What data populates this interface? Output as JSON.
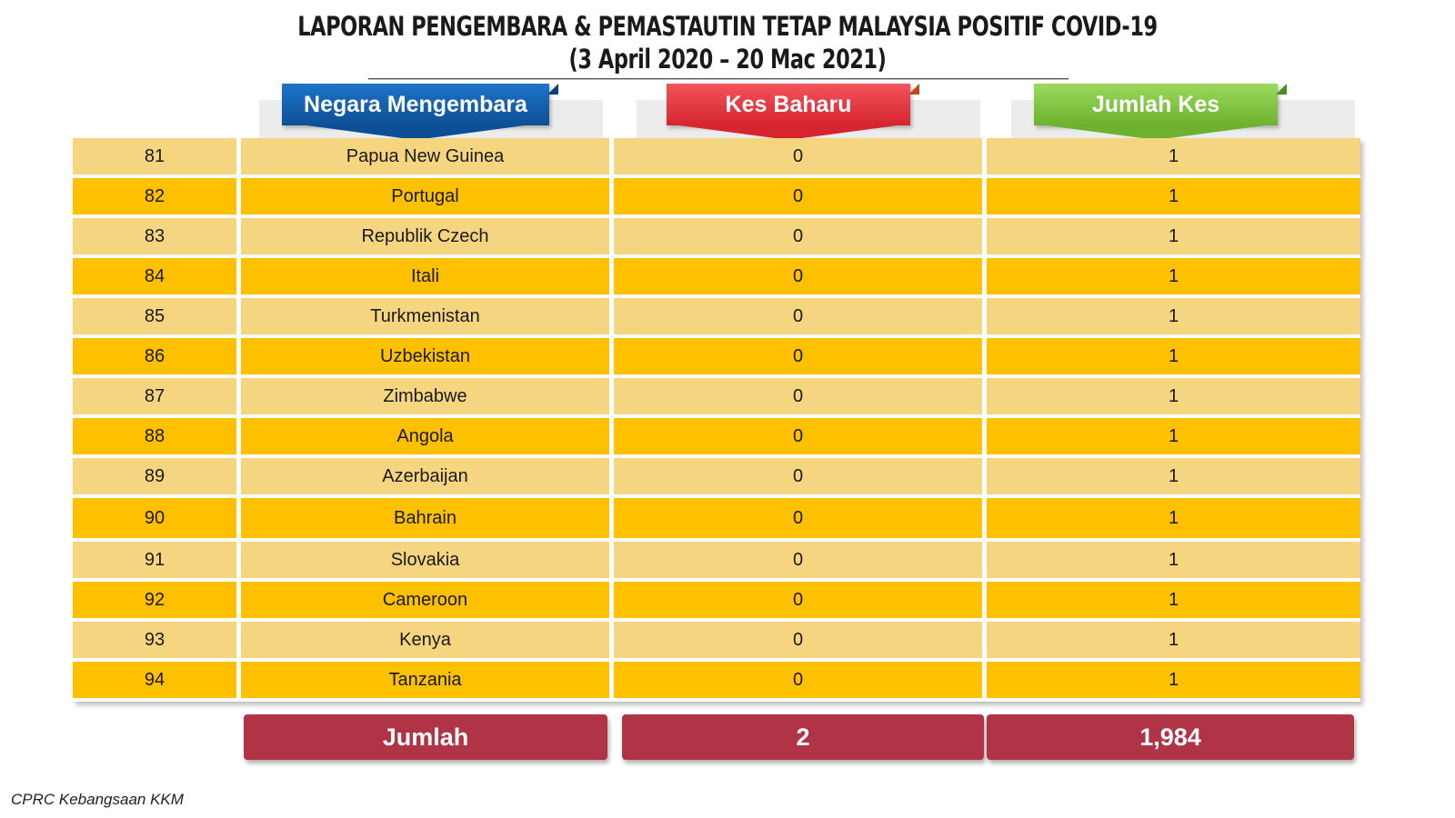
{
  "title": {
    "line1": "LAPORAN PENGEMBARA & PEMASTAUTIN TETAP MALAYSIA POSITIF COVID-19",
    "line2": "(3 April 2020 – 20 Mac 2021)"
  },
  "headers": {
    "country": "Negara Mengembara",
    "new_cases": "Kes Baharu",
    "total_cases": "Jumlah Kes"
  },
  "colors": {
    "header_country": "#0d4f96",
    "header_new": "#d6252f",
    "header_total": "#6db22e",
    "row_light": "#f5d580",
    "row_dark": "#ffc000",
    "total_bar": "#b03346"
  },
  "rows": [
    {
      "no": "81",
      "country": "Papua New Guinea",
      "new": "0",
      "total": "1"
    },
    {
      "no": "82",
      "country": "Portugal",
      "new": "0",
      "total": "1"
    },
    {
      "no": "83",
      "country": "Republik Czech",
      "new": "0",
      "total": "1"
    },
    {
      "no": "84",
      "country": "Itali",
      "new": "0",
      "total": "1"
    },
    {
      "no": "85",
      "country": "Turkmenistan",
      "new": "0",
      "total": "1"
    },
    {
      "no": "86",
      "country": "Uzbekistan",
      "new": "0",
      "total": "1"
    },
    {
      "no": "87",
      "country": "Zimbabwe",
      "new": "0",
      "total": "1"
    },
    {
      "no": "88",
      "country": "Angola",
      "new": "0",
      "total": "1"
    },
    {
      "no": "89",
      "country": "Azerbaijan",
      "new": "0",
      "total": "1"
    },
    {
      "no": "90",
      "country": "Bahrain",
      "new": "0",
      "total": "1"
    },
    {
      "no": "91",
      "country": "Slovakia",
      "new": "0",
      "total": "1"
    },
    {
      "no": "92",
      "country": "Cameroon",
      "new": "0",
      "total": "1"
    },
    {
      "no": "93",
      "country": "Kenya",
      "new": "0",
      "total": "1"
    },
    {
      "no": "94",
      "country": "Tanzania",
      "new": "0",
      "total": "1"
    }
  ],
  "totals": {
    "label": "Jumlah",
    "new": "2",
    "total": "1,984"
  },
  "footer": "CPRC Kebangsaan KKM"
}
